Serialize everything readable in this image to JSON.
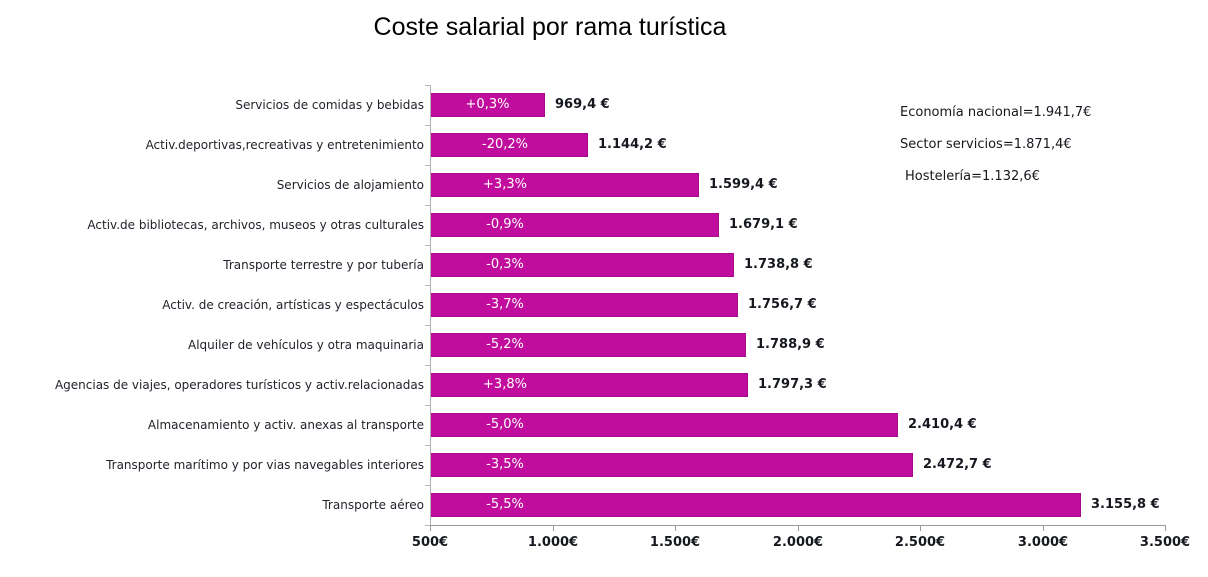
{
  "chart_data": {
    "type": "bar",
    "orientation": "horizontal",
    "title": "Coste salarial por rama turística",
    "bar_color": "#c00d9d",
    "grid": "off",
    "legend_position": "none",
    "x_axis": {
      "min": 500,
      "max": 3500,
      "tick_values": [
        500,
        1000,
        1500,
        2000,
        2500,
        3000,
        3500
      ],
      "tick_labels": [
        "500€",
        "1.000€",
        "1.500€",
        "2.000€",
        "2.500€",
        "3.000€",
        "3.500€"
      ]
    },
    "rows": [
      {
        "label": "Servicios de comidas y bebidas",
        "pct": "+0,3%",
        "value": 969.4,
        "value_label": "969,4 €"
      },
      {
        "label": "Activ.deportivas,recreativas y entretenimiento",
        "pct": "-20,2%",
        "value": 1144.2,
        "value_label": "1.144,2 €"
      },
      {
        "label": "Servicios de alojamiento",
        "pct": "+3,3%",
        "value": 1599.4,
        "value_label": "1.599,4 €"
      },
      {
        "label": "Activ.de bibliotecas, archivos, museos y otras culturales",
        "pct": "-0,9%",
        "value": 1679.1,
        "value_label": "1.679,1 €"
      },
      {
        "label": "Transporte terrestre y por tubería",
        "pct": "-0,3%",
        "value": 1738.8,
        "value_label": "1.738,8 €"
      },
      {
        "label": "Activ. de creación, artísticas y espectáculos",
        "pct": "-3,7%",
        "value": 1756.7,
        "value_label": "1.756,7 €"
      },
      {
        "label": "Alquiler de vehículos y otra maquinaria",
        "pct": "-5,2%",
        "value": 1788.9,
        "value_label": "1.788,9 €"
      },
      {
        "label": "Agencias de viajes, operadores turísticos y activ.relacionadas",
        "pct": "+3,8%",
        "value": 1797.3,
        "value_label": "1.797,3 €"
      },
      {
        "label": "Almacenamiento y activ. anexas al transporte",
        "pct": "-5,0%",
        "value": 2410.4,
        "value_label": "2.410,4 €"
      },
      {
        "label": "Transporte marítimo y por vias navegables interiores",
        "pct": "-3,5%",
        "value": 2472.7,
        "value_label": "2.472,7 €"
      },
      {
        "label": "Transporte aéreo",
        "pct": "-5,5%",
        "value": 3155.8,
        "value_label": "3.155,8 €"
      }
    ],
    "annotations": [
      "Economía nacional=1.941,7€",
      "Sector servicios=1.871,4€",
      "Hostelería=1.132,6€"
    ]
  }
}
